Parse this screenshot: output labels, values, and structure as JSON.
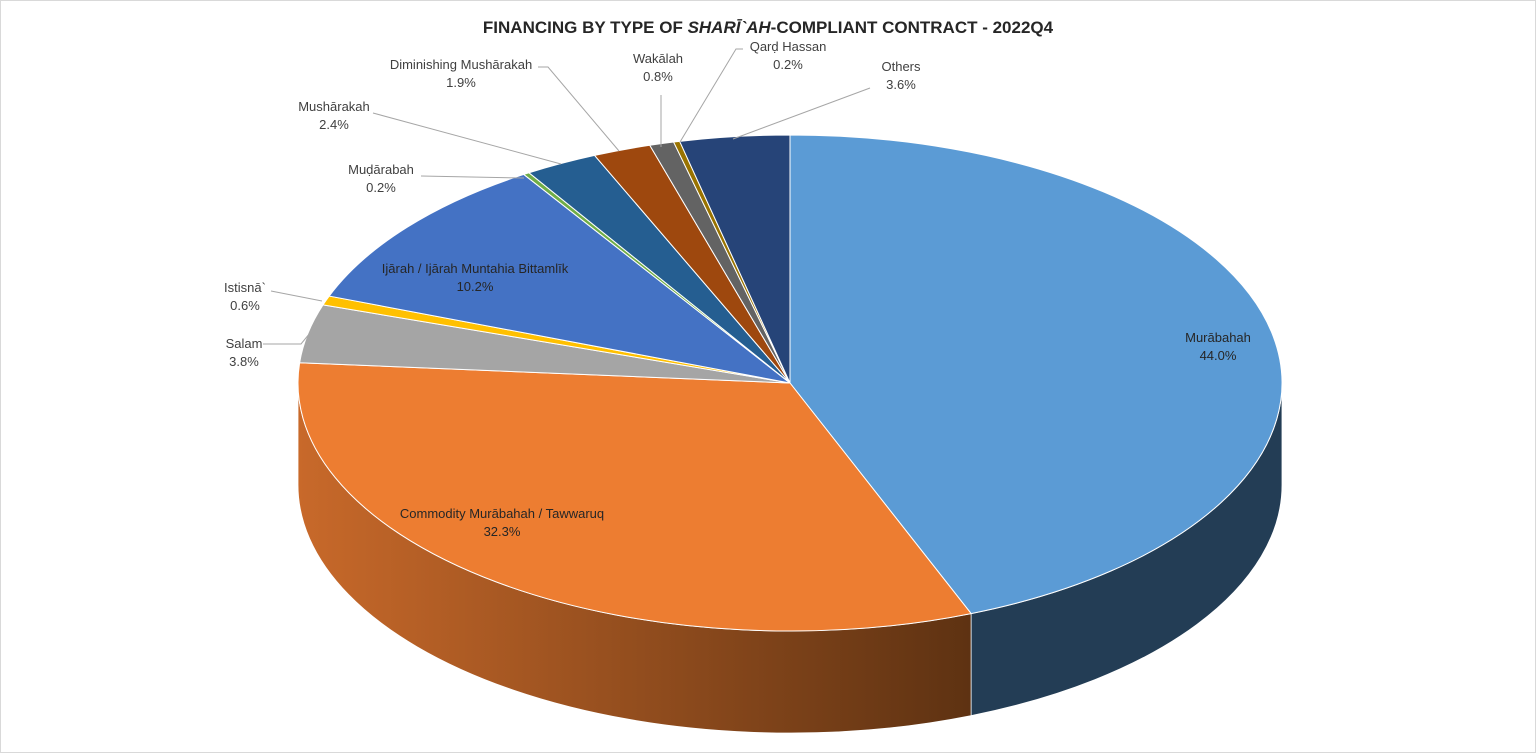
{
  "chart_data": {
    "type": "pie",
    "title": {
      "prefix": "FINANCING BY TYPE OF ",
      "emphasis": "SHARĪ`AH",
      "suffix": "-COMPLIANT CONTRACT - 2022Q4"
    },
    "slices": [
      {
        "label": "Murābahah",
        "value": 44.0,
        "value_label": "44.0%",
        "color": "#5b9bd5",
        "side_color": "#233d55"
      },
      {
        "label": "Commodity Murābahah / Tawwaruq",
        "value": 32.3,
        "value_label": "32.3%",
        "color": "#ed7d31",
        "side_color": "#b35d24"
      },
      {
        "label": "Salam",
        "value": 3.8,
        "value_label": "3.8%",
        "color": "#a5a5a5",
        "side_color": "#7c7c7c"
      },
      {
        "label": "Istisnā`",
        "value": 0.6,
        "value_label": "0.6%",
        "color": "#ffc000",
        "side_color": "#bf9000"
      },
      {
        "label": "Ijārah / Ijārah Muntahia Bittamlīk",
        "value": 10.2,
        "value_label": "10.2%",
        "color": "#4472c4",
        "side_color": "#2f5597"
      },
      {
        "label": "Muḍārabah",
        "value": 0.2,
        "value_label": "0.2%",
        "color": "#70ad47",
        "side_color": "#507e32"
      },
      {
        "label": "Mushārakah",
        "value": 2.4,
        "value_label": "2.4%",
        "color": "#255e91",
        "side_color": "#1a4367"
      },
      {
        "label": "Diminishing Mushārakah",
        "value": 1.9,
        "value_label": "1.9%",
        "color": "#9e480e",
        "side_color": "#6e320a"
      },
      {
        "label": "Wakālah",
        "value": 0.8,
        "value_label": "0.8%",
        "color": "#636363",
        "side_color": "#454545"
      },
      {
        "label": "Qarḍ Hassan",
        "value": 0.2,
        "value_label": "0.2%",
        "color": "#997300",
        "side_color": "#6b5000"
      },
      {
        "label": "Others",
        "value": 3.6,
        "value_label": "3.6%",
        "color": "#264478",
        "side_color": "#1a2f54"
      }
    ]
  }
}
